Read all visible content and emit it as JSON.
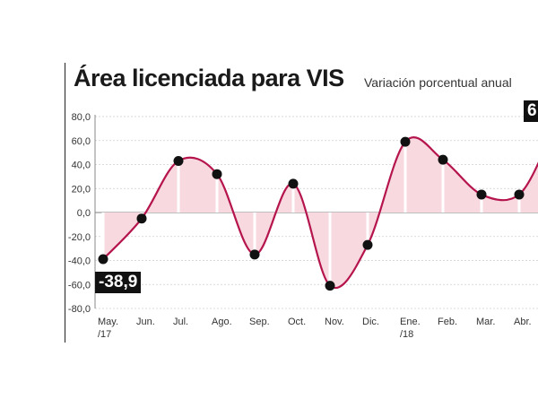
{
  "title": "Área licenciada para VIS",
  "subtitle": "Variación porcentual anual",
  "colors": {
    "line": "#b5144d",
    "fill": "#f7d9df",
    "marker": "#111111",
    "bar": "#ffffff"
  },
  "chart_data": {
    "type": "area",
    "title": "Área licenciada para VIS",
    "subtitle": "Variación porcentual anual",
    "categories": [
      "May.\n/17",
      "Jun.",
      "Jul.",
      "Ago.",
      "Sep.",
      "Oct.",
      "Nov.",
      "Dic.",
      "Ene.\n/18",
      "Feb.",
      "Mar.",
      "Abr."
    ],
    "values": [
      -38.9,
      -5,
      43,
      32,
      -35,
      24,
      -61,
      -27,
      59,
      44,
      15,
      15
    ],
    "yticks": [
      "80,0",
      "60,0",
      "40,0",
      "20,0",
      "0,0",
      "-20,0",
      "-40,0",
      "-60,0",
      "-80,0"
    ],
    "ylim": [
      -80,
      80
    ],
    "grid": true,
    "callouts": [
      {
        "text": "-38,9"
      },
      {
        "text": "6"
      }
    ]
  }
}
